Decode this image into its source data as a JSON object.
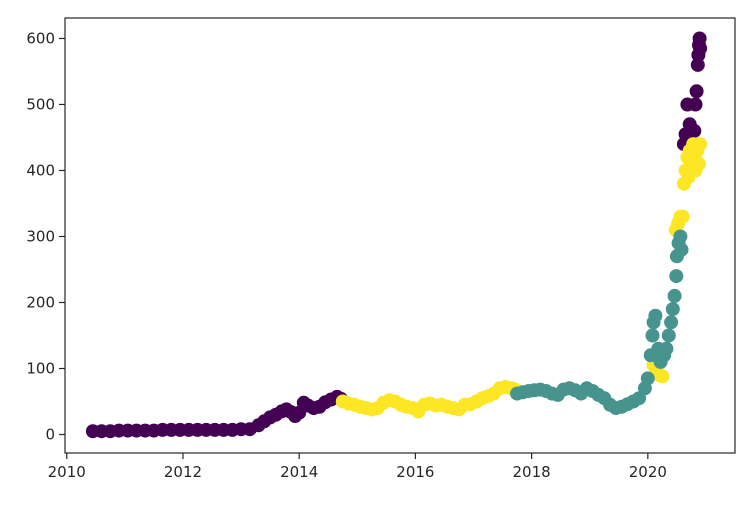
{
  "chart_data": {
    "type": "scatter",
    "title": "",
    "xlabel": "",
    "ylabel": "",
    "xlim": [
      2009.97,
      2021.5
    ],
    "ylim": [
      -28,
      631
    ],
    "grid": false,
    "x_ticks": [
      2010,
      2012,
      2014,
      2016,
      2018,
      2020
    ],
    "x_tick_labels": [
      "2010",
      "2012",
      "2014",
      "2016",
      "2018",
      "2020"
    ],
    "y_ticks": [
      0,
      100,
      200,
      300,
      400,
      500,
      600
    ],
    "y_tick_labels": [
      "0",
      "100",
      "200",
      "300",
      "400",
      "500",
      "600"
    ],
    "series": [
      {
        "color": "#440154",
        "points": [
          [
            2010.45,
            5
          ],
          [
            2010.6,
            5
          ],
          [
            2010.75,
            5
          ],
          [
            2010.9,
            6
          ],
          [
            2011.05,
            6
          ],
          [
            2011.2,
            6
          ],
          [
            2011.35,
            6
          ],
          [
            2011.5,
            6
          ],
          [
            2011.65,
            7
          ],
          [
            2011.8,
            7
          ],
          [
            2011.95,
            7
          ],
          [
            2012.1,
            7
          ],
          [
            2012.25,
            7
          ],
          [
            2012.4,
            7
          ],
          [
            2012.55,
            7
          ],
          [
            2012.7,
            7
          ],
          [
            2012.85,
            7
          ],
          [
            2013.0,
            8
          ],
          [
            2013.15,
            8
          ],
          [
            2013.3,
            14
          ],
          [
            2013.4,
            20
          ],
          [
            2013.5,
            26
          ],
          [
            2013.6,
            30
          ],
          [
            2013.7,
            35
          ],
          [
            2013.78,
            38
          ],
          [
            2013.86,
            34
          ],
          [
            2013.93,
            28
          ],
          [
            2014.0,
            33
          ],
          [
            2014.08,
            48
          ],
          [
            2014.15,
            44
          ],
          [
            2014.25,
            40
          ],
          [
            2014.35,
            42
          ],
          [
            2014.45,
            49
          ],
          [
            2014.55,
            53
          ],
          [
            2014.65,
            57
          ],
          [
            2014.72,
            54
          ],
          [
            2020.62,
            440
          ],
          [
            2020.65,
            455
          ],
          [
            2020.68,
            500
          ],
          [
            2020.72,
            470
          ],
          [
            2020.8,
            460
          ],
          [
            2020.82,
            500
          ],
          [
            2020.84,
            520
          ],
          [
            2020.86,
            560
          ],
          [
            2020.87,
            575
          ],
          [
            2020.88,
            590
          ],
          [
            2020.89,
            600
          ],
          [
            2020.9,
            585
          ]
        ]
      },
      {
        "color": "#fde725",
        "points": [
          [
            2014.75,
            50
          ],
          [
            2014.85,
            47
          ],
          [
            2014.95,
            45
          ],
          [
            2015.05,
            42
          ],
          [
            2015.15,
            40
          ],
          [
            2015.25,
            38
          ],
          [
            2015.35,
            40
          ],
          [
            2015.45,
            48
          ],
          [
            2015.55,
            52
          ],
          [
            2015.65,
            50
          ],
          [
            2015.75,
            45
          ],
          [
            2015.85,
            42
          ],
          [
            2015.95,
            40
          ],
          [
            2016.05,
            35
          ],
          [
            2016.15,
            45
          ],
          [
            2016.25,
            47
          ],
          [
            2016.35,
            44
          ],
          [
            2016.45,
            45
          ],
          [
            2016.55,
            42
          ],
          [
            2016.65,
            40
          ],
          [
            2016.75,
            38
          ],
          [
            2016.85,
            45
          ],
          [
            2016.95,
            46
          ],
          [
            2017.05,
            50
          ],
          [
            2017.15,
            55
          ],
          [
            2017.25,
            58
          ],
          [
            2017.35,
            62
          ],
          [
            2017.45,
            70
          ],
          [
            2017.55,
            72
          ],
          [
            2017.65,
            70
          ],
          [
            2017.72,
            68
          ],
          [
            2020.1,
            105
          ],
          [
            2020.15,
            100
          ],
          [
            2020.2,
            90
          ],
          [
            2020.25,
            88
          ],
          [
            2020.48,
            310
          ],
          [
            2020.52,
            320
          ],
          [
            2020.56,
            330
          ],
          [
            2020.6,
            330
          ],
          [
            2020.62,
            380
          ],
          [
            2020.65,
            400
          ],
          [
            2020.68,
            420
          ],
          [
            2020.7,
            390
          ],
          [
            2020.72,
            430
          ],
          [
            2020.75,
            410
          ],
          [
            2020.78,
            440
          ],
          [
            2020.8,
            420
          ],
          [
            2020.82,
            400
          ],
          [
            2020.85,
            430
          ],
          [
            2020.88,
            410
          ],
          [
            2020.9,
            440
          ]
        ]
      },
      {
        "color": "#47948e",
        "points": [
          [
            2017.75,
            62
          ],
          [
            2017.85,
            64
          ],
          [
            2017.95,
            66
          ],
          [
            2018.05,
            67
          ],
          [
            2018.15,
            68
          ],
          [
            2018.25,
            66
          ],
          [
            2018.35,
            62
          ],
          [
            2018.45,
            60
          ],
          [
            2018.55,
            68
          ],
          [
            2018.65,
            70
          ],
          [
            2018.75,
            67
          ],
          [
            2018.85,
            62
          ],
          [
            2018.95,
            70
          ],
          [
            2019.05,
            66
          ],
          [
            2019.15,
            60
          ],
          [
            2019.25,
            55
          ],
          [
            2019.35,
            45
          ],
          [
            2019.45,
            40
          ],
          [
            2019.55,
            42
          ],
          [
            2019.65,
            46
          ],
          [
            2019.75,
            50
          ],
          [
            2019.85,
            55
          ],
          [
            2019.95,
            70
          ],
          [
            2020.0,
            85
          ],
          [
            2020.05,
            120
          ],
          [
            2020.08,
            150
          ],
          [
            2020.1,
            170
          ],
          [
            2020.13,
            180
          ],
          [
            2020.18,
            130
          ],
          [
            2020.22,
            110
          ],
          [
            2020.28,
            120
          ],
          [
            2020.32,
            130
          ],
          [
            2020.36,
            150
          ],
          [
            2020.4,
            170
          ],
          [
            2020.43,
            190
          ],
          [
            2020.46,
            210
          ],
          [
            2020.49,
            240
          ],
          [
            2020.5,
            270
          ],
          [
            2020.53,
            290
          ],
          [
            2020.56,
            300
          ],
          [
            2020.58,
            280
          ]
        ]
      }
    ]
  }
}
